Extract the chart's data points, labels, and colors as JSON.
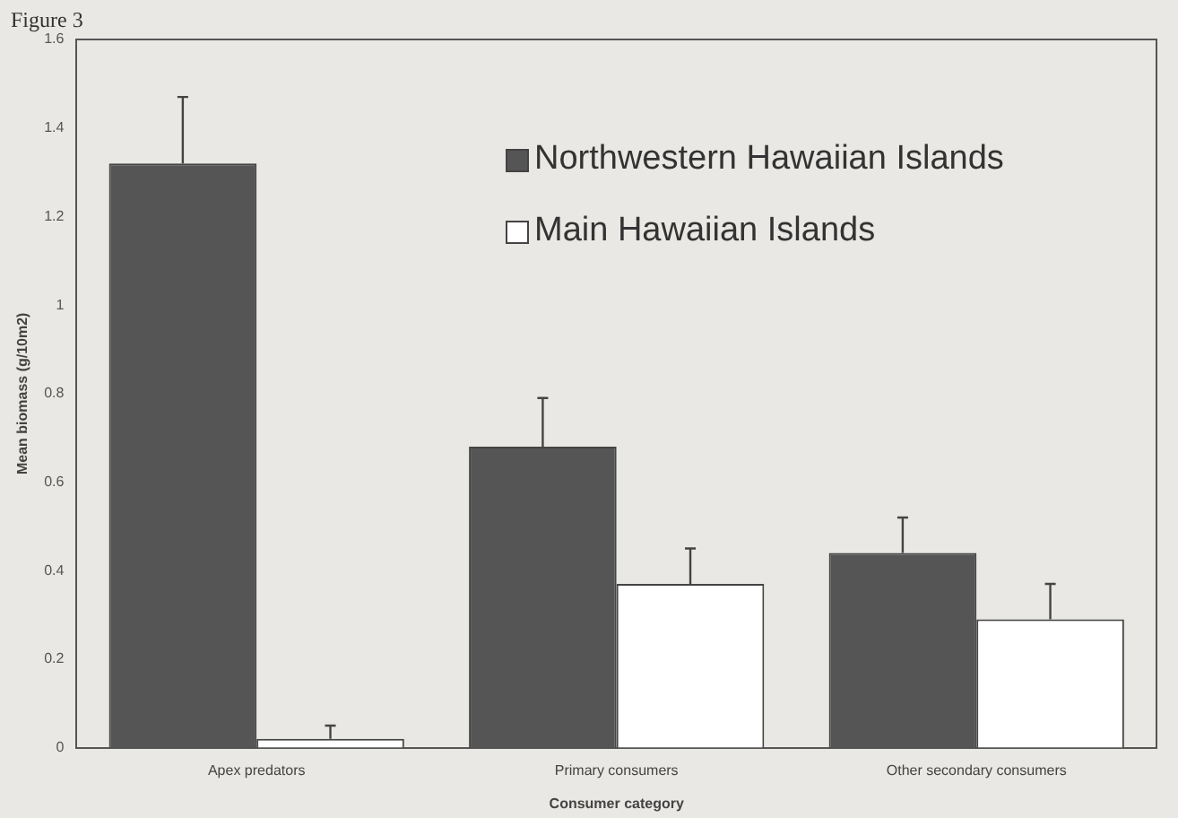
{
  "chart_data": {
    "type": "bar",
    "title": "Figure 3",
    "xlabel": "Consumer category",
    "ylabel": "Mean biomass (g/10m2)",
    "categories": [
      "Apex predators",
      "Primary consumers",
      "Other secondary consumers"
    ],
    "series": [
      {
        "name": "Northwestern Hawaiian Islands",
        "color": "#555555",
        "values": [
          1.32,
          0.68,
          0.44
        ],
        "errors": [
          [
            1.32,
            1.47
          ],
          [
            0.68,
            0.79
          ],
          [
            0.44,
            0.52
          ]
        ]
      },
      {
        "name": "Main Hawaiian Islands",
        "color": "#ffffff",
        "values": [
          0.02,
          0.37,
          0.29
        ],
        "errors": [
          [
            0.02,
            0.05
          ],
          [
            0.37,
            0.45
          ],
          [
            0.29,
            0.37
          ]
        ]
      }
    ],
    "ylim": [
      0,
      1.6
    ],
    "yticks": [
      0,
      0.2,
      0.4,
      0.6,
      0.8,
      1,
      1.2,
      1.4,
      1.6
    ],
    "grid": false,
    "legend": "top right"
  }
}
